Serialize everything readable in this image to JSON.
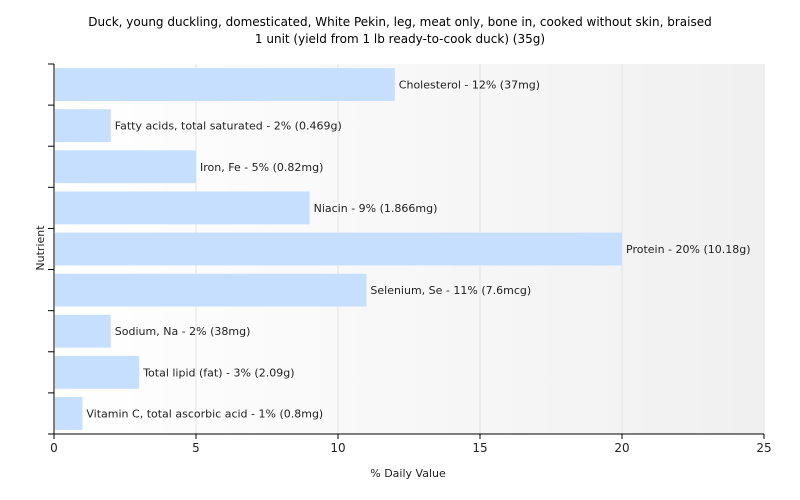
{
  "chart_data": {
    "type": "bar",
    "orientation": "horizontal",
    "title_line1": "Duck, young duckling, domesticated, White Pekin, leg, meat only, bone in, cooked without skin, braised",
    "title_line2": "1 unit (yield from 1 lb ready-to-cook duck) (35g)",
    "xlabel": "% Daily Value",
    "ylabel": "Nutrient",
    "xlim": [
      0,
      25
    ],
    "xticks": [
      0,
      5,
      10,
      15,
      20,
      25
    ],
    "grid": true,
    "bar_color": "#c6dfff",
    "categories": [
      "Cholesterol",
      "Fatty acids, total saturated",
      "Iron, Fe",
      "Niacin",
      "Protein",
      "Selenium, Se",
      "Sodium, Na",
      "Total lipid (fat)",
      "Vitamin C, total ascorbic acid"
    ],
    "values": [
      12,
      2,
      5,
      9,
      20,
      11,
      2,
      3,
      1
    ],
    "labels": [
      "Cholesterol - 12% (37mg)",
      "Fatty acids, total saturated - 2% (0.469g)",
      "Iron, Fe - 5% (0.82mg)",
      "Niacin - 9% (1.866mg)",
      "Protein - 20% (10.18g)",
      "Selenium, Se - 11% (7.6mcg)",
      "Sodium, Na - 2% (38mg)",
      "Total lipid (fat) - 3% (2.09g)",
      "Vitamin C, total ascorbic acid - 1% (0.8mg)"
    ]
  }
}
